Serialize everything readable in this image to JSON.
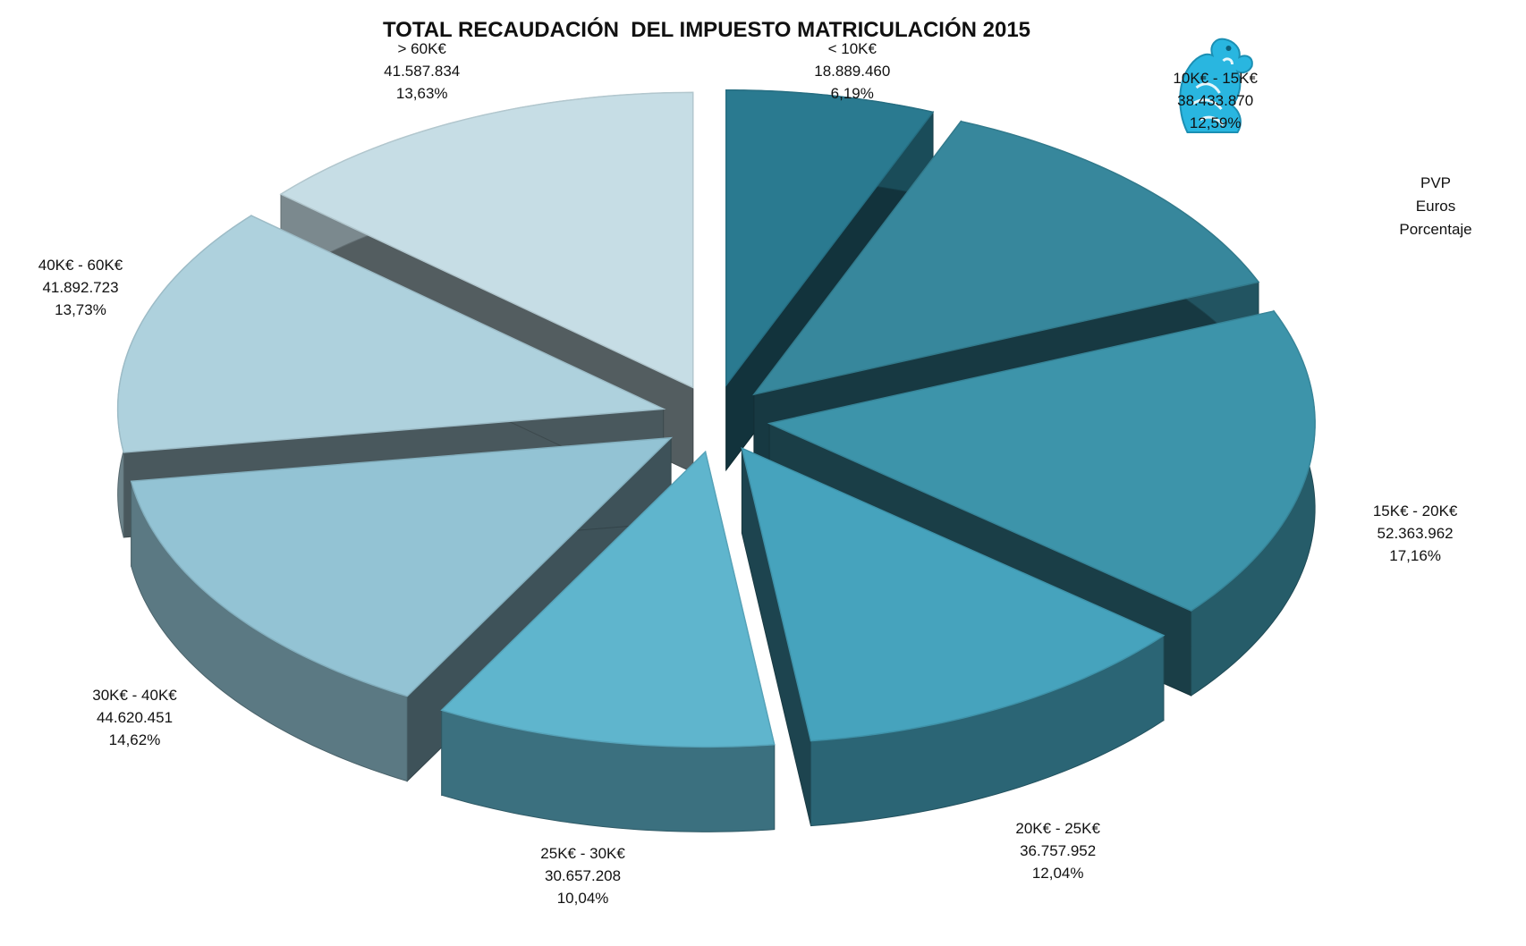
{
  "chart_data": {
    "type": "pie",
    "title": "TOTAL RECAUDACIÓN  DEL IMPUESTO MATRICULACIÓN 2015",
    "legend_caption": [
      "PVP",
      "Euros",
      "Porcentaje"
    ],
    "three_d": true,
    "exploded": true,
    "slices": [
      {
        "category": "< 10K€",
        "value_text": "18.889.460",
        "value": 18889460,
        "percent_text": "6,19%",
        "percent": 6.19,
        "color": "#2a7a90"
      },
      {
        "category": "10K€ - 15K€",
        "value_text": "38.433.870",
        "value": 38433870,
        "percent_text": "12,59%",
        "percent": 12.59,
        "color": "#37879c"
      },
      {
        "category": "15K€ - 20K€",
        "value_text": "52.363.962",
        "value": 52363962,
        "percent_text": "17,16%",
        "percent": 17.16,
        "color": "#3d94aa"
      },
      {
        "category": "20K€ - 25K€",
        "value_text": "36.757.952",
        "value": 36757952,
        "percent_text": "12,04%",
        "percent": 12.04,
        "color": "#46a3bd"
      },
      {
        "category": "25K€ - 30K€",
        "value_text": "30.657.208",
        "value": 30657208,
        "percent_text": "10,04%",
        "percent": 10.04,
        "color": "#5fb5cd"
      },
      {
        "category": "30K€ - 40K€",
        "value_text": "44.620.451",
        "value": 44620451,
        "percent_text": "14,62%",
        "percent": 14.62,
        "color": "#93c3d4"
      },
      {
        "category": "40K€ - 60K€",
        "value_text": "41.892.723",
        "value": 41892723,
        "percent_text": "13,73%",
        "percent": 13.73,
        "color": "#aed1dd"
      },
      {
        "category": "> 60K€",
        "value_text": "41.587.834",
        "value": 41587834,
        "percent_text": "13,63%",
        "percent": 13.63,
        "color": "#c6dde5"
      }
    ]
  },
  "logo": {
    "icon": "griffin-logo-icon",
    "color": "#29b6e0"
  }
}
